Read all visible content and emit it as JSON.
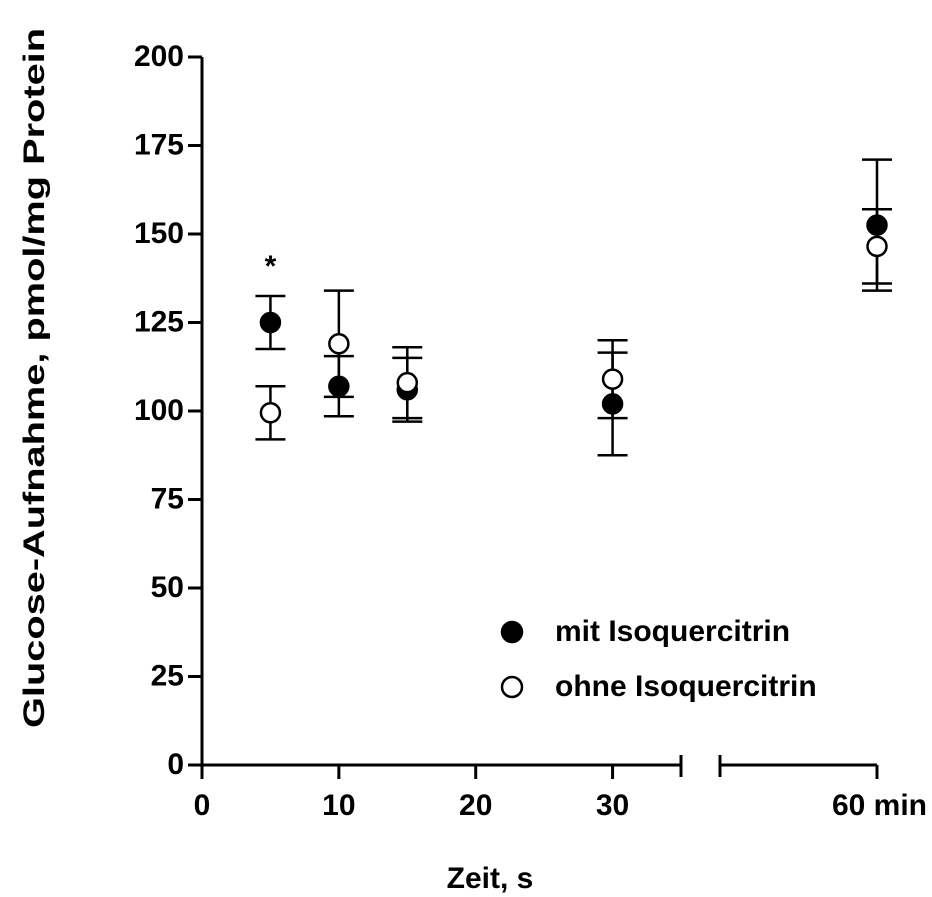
{
  "chart_data": {
    "type": "scatter",
    "xlabel": "Zeit, s",
    "ylabel": "Glucose-Aufnahme, pmol/mg Protein",
    "x": [
      5,
      10,
      15,
      30,
      60
    ],
    "series": [
      {
        "name": "mit Isoquercitrin",
        "marker": "filled",
        "color": "#000000",
        "values": [
          125,
          107,
          106,
          102,
          152.5
        ],
        "errors": [
          7.5,
          8.5,
          9,
          14.5,
          18.5
        ]
      },
      {
        "name": "ohne Isoquercitrin",
        "marker": "open",
        "color": "#000000",
        "values": [
          99.5,
          119,
          108,
          109,
          146.5
        ],
        "errors": [
          7.5,
          15,
          10,
          11,
          10.5
        ]
      }
    ],
    "annotations": [
      {
        "text": "*",
        "x": 5,
        "series": 0
      }
    ],
    "xlim": [
      0,
      60
    ],
    "xbreak": [
      35,
      48.5
    ],
    "xticks": [
      0,
      10,
      20,
      30,
      {
        "value": 60,
        "label": "60 min"
      }
    ],
    "ylim": [
      0,
      200
    ],
    "yticks": [
      0,
      25,
      50,
      75,
      100,
      125,
      150,
      175,
      200
    ],
    "legend": "lower right"
  }
}
